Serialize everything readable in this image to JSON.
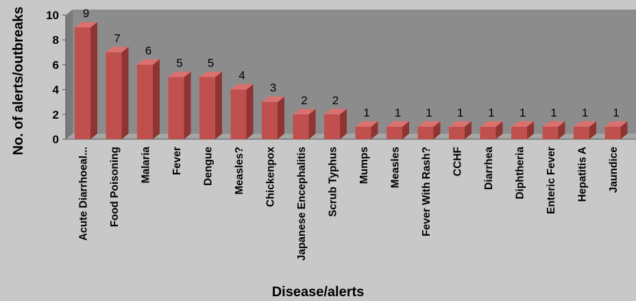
{
  "chart_data": {
    "type": "bar",
    "title": "",
    "xlabel": "Disease/alerts",
    "ylabel": "No. of alerts/outbreaks",
    "ylim": [
      0,
      10
    ],
    "yticks": [
      0,
      2,
      4,
      6,
      8,
      10
    ],
    "grid": false,
    "legend": "none",
    "categories": [
      "Acute Diarrhoeal...",
      "Food Poisoning",
      "Malaria",
      "Fever",
      "Dengue",
      "Measles?",
      "Chickenpox",
      "Japanese Encephalitis",
      "Scrub Typhus",
      "Mumps",
      "Measles",
      "Fever With Rash?",
      "CCHF",
      "Diarrhea",
      "Diphtheria",
      "Enteric Fever",
      "Hepatitis A",
      "Jaundice"
    ],
    "values": [
      9,
      7,
      6,
      5,
      5,
      4,
      3,
      2,
      2,
      1,
      1,
      1,
      1,
      1,
      1,
      1,
      1,
      1
    ],
    "colors": {
      "background": "#c8c8c8",
      "wall": "#8c8c8c",
      "bar_front": "#c0504d",
      "bar_side": "#8e3533",
      "bar_top": "#d9726f"
    }
  }
}
